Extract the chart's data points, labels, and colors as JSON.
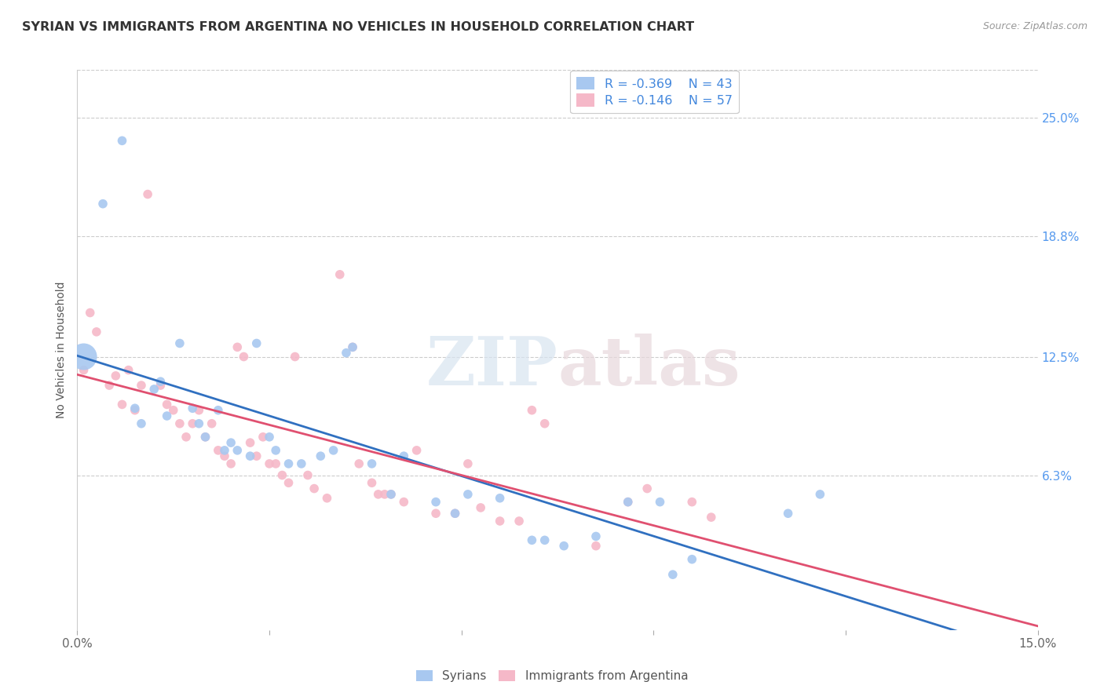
{
  "title": "SYRIAN VS IMMIGRANTS FROM ARGENTINA NO VEHICLES IN HOUSEHOLD CORRELATION CHART",
  "source": "Source: ZipAtlas.com",
  "ylabel": "No Vehicles in Household",
  "yticks_labels": [
    "25.0%",
    "18.8%",
    "12.5%",
    "6.3%"
  ],
  "ytick_values": [
    0.25,
    0.188,
    0.125,
    0.063
  ],
  "xmin": 0.0,
  "xmax": 0.15,
  "ymin": -0.018,
  "ymax": 0.275,
  "legend_r1": "R = -0.369",
  "legend_n1": "N = 43",
  "legend_r2": "R = -0.146",
  "legend_n2": "N = 57",
  "color_blue": "#A8C8F0",
  "color_pink": "#F5B8C8",
  "line_blue": "#3070C0",
  "line_pink": "#E05070",
  "legend_label1": "Syrians",
  "legend_label2": "Immigrants from Argentina",
  "watermark_zip": "ZIP",
  "watermark_atlas": "atlas",
  "blue_points": [
    [
      0.001,
      0.125
    ],
    [
      0.004,
      0.205
    ],
    [
      0.007,
      0.238
    ],
    [
      0.009,
      0.098
    ],
    [
      0.01,
      0.09
    ],
    [
      0.012,
      0.108
    ],
    [
      0.013,
      0.112
    ],
    [
      0.014,
      0.094
    ],
    [
      0.016,
      0.132
    ],
    [
      0.018,
      0.098
    ],
    [
      0.019,
      0.09
    ],
    [
      0.02,
      0.083
    ],
    [
      0.022,
      0.097
    ],
    [
      0.023,
      0.076
    ],
    [
      0.024,
      0.08
    ],
    [
      0.025,
      0.076
    ],
    [
      0.027,
      0.073
    ],
    [
      0.028,
      0.132
    ],
    [
      0.03,
      0.083
    ],
    [
      0.031,
      0.076
    ],
    [
      0.033,
      0.069
    ],
    [
      0.035,
      0.069
    ],
    [
      0.038,
      0.073
    ],
    [
      0.04,
      0.076
    ],
    [
      0.042,
      0.127
    ],
    [
      0.043,
      0.13
    ],
    [
      0.046,
      0.069
    ],
    [
      0.049,
      0.053
    ],
    [
      0.051,
      0.073
    ],
    [
      0.056,
      0.049
    ],
    [
      0.059,
      0.043
    ],
    [
      0.061,
      0.053
    ],
    [
      0.066,
      0.051
    ],
    [
      0.071,
      0.029
    ],
    [
      0.073,
      0.029
    ],
    [
      0.076,
      0.026
    ],
    [
      0.081,
      0.031
    ],
    [
      0.086,
      0.049
    ],
    [
      0.091,
      0.049
    ],
    [
      0.093,
      0.011
    ],
    [
      0.096,
      0.019
    ],
    [
      0.111,
      0.043
    ],
    [
      0.116,
      0.053
    ]
  ],
  "blue_sizes": [
    600,
    70,
    70,
    70,
    70,
    70,
    70,
    70,
    70,
    70,
    70,
    70,
    70,
    70,
    70,
    70,
    70,
    70,
    70,
    70,
    70,
    70,
    70,
    70,
    70,
    70,
    70,
    70,
    70,
    70,
    70,
    70,
    70,
    70,
    70,
    70,
    70,
    70,
    70,
    70,
    70,
    70,
    70
  ],
  "pink_points": [
    [
      0.001,
      0.118
    ],
    [
      0.002,
      0.148
    ],
    [
      0.003,
      0.138
    ],
    [
      0.005,
      0.11
    ],
    [
      0.006,
      0.115
    ],
    [
      0.007,
      0.1
    ],
    [
      0.008,
      0.118
    ],
    [
      0.009,
      0.097
    ],
    [
      0.01,
      0.11
    ],
    [
      0.011,
      0.21
    ],
    [
      0.013,
      0.11
    ],
    [
      0.014,
      0.1
    ],
    [
      0.015,
      0.097
    ],
    [
      0.016,
      0.09
    ],
    [
      0.017,
      0.083
    ],
    [
      0.018,
      0.09
    ],
    [
      0.019,
      0.097
    ],
    [
      0.02,
      0.083
    ],
    [
      0.021,
      0.09
    ],
    [
      0.022,
      0.076
    ],
    [
      0.023,
      0.073
    ],
    [
      0.024,
      0.069
    ],
    [
      0.025,
      0.13
    ],
    [
      0.026,
      0.125
    ],
    [
      0.027,
      0.08
    ],
    [
      0.028,
      0.073
    ],
    [
      0.029,
      0.083
    ],
    [
      0.03,
      0.069
    ],
    [
      0.031,
      0.069
    ],
    [
      0.032,
      0.063
    ],
    [
      0.033,
      0.059
    ],
    [
      0.034,
      0.125
    ],
    [
      0.036,
      0.063
    ],
    [
      0.037,
      0.056
    ],
    [
      0.039,
      0.051
    ],
    [
      0.041,
      0.168
    ],
    [
      0.043,
      0.13
    ],
    [
      0.044,
      0.069
    ],
    [
      0.046,
      0.059
    ],
    [
      0.047,
      0.053
    ],
    [
      0.048,
      0.053
    ],
    [
      0.049,
      0.053
    ],
    [
      0.051,
      0.049
    ],
    [
      0.053,
      0.076
    ],
    [
      0.056,
      0.043
    ],
    [
      0.059,
      0.043
    ],
    [
      0.061,
      0.069
    ],
    [
      0.063,
      0.046
    ],
    [
      0.066,
      0.039
    ],
    [
      0.069,
      0.039
    ],
    [
      0.071,
      0.097
    ],
    [
      0.073,
      0.09
    ],
    [
      0.081,
      0.026
    ],
    [
      0.086,
      0.049
    ],
    [
      0.089,
      0.056
    ],
    [
      0.096,
      0.049
    ],
    [
      0.099,
      0.041
    ]
  ],
  "pink_sizes": [
    70,
    70,
    70,
    70,
    70,
    70,
    70,
    70,
    70,
    70,
    70,
    70,
    70,
    70,
    70,
    70,
    70,
    70,
    70,
    70,
    70,
    70,
    70,
    70,
    70,
    70,
    70,
    70,
    70,
    70,
    70,
    70,
    70,
    70,
    70,
    70,
    70,
    70,
    70,
    70,
    70,
    70,
    70,
    70,
    70,
    70,
    70,
    70,
    70,
    70,
    70,
    70,
    70,
    70,
    70,
    70,
    70
  ]
}
